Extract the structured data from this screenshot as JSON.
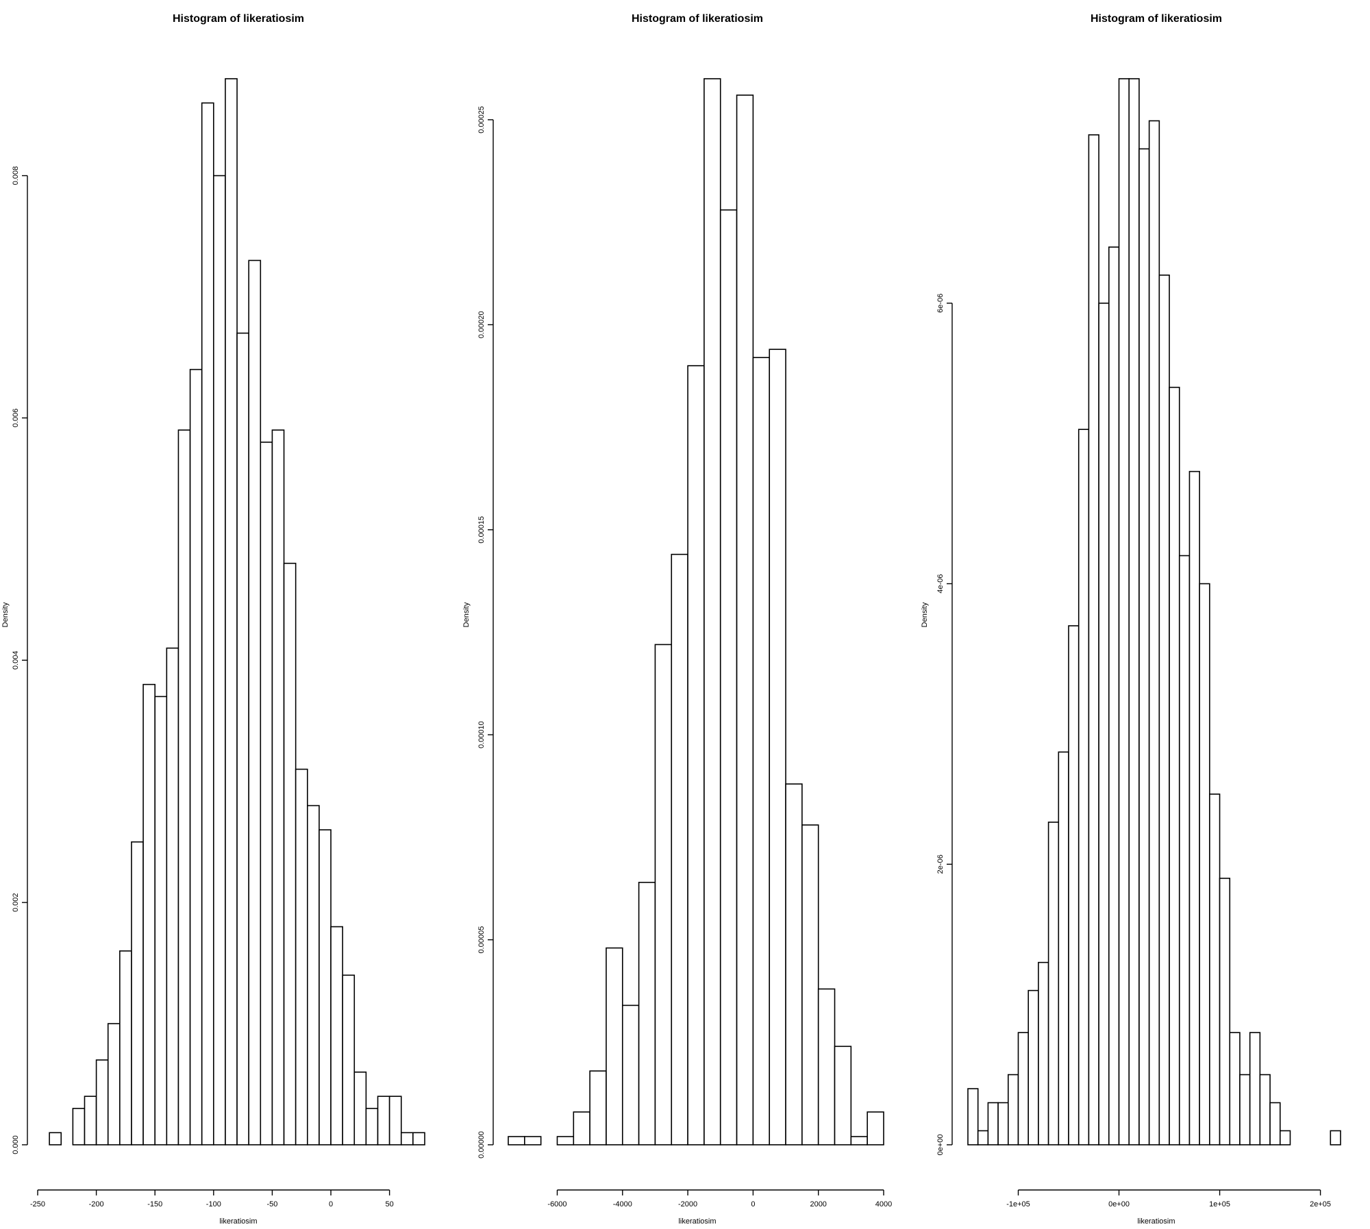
{
  "chart_data": [
    {
      "type": "histogram",
      "title": "Histogram of likeratiosim",
      "xlabel": "likeratiosim",
      "ylabel": "Density",
      "xticks": [
        -250,
        -200,
        -150,
        -100,
        -50,
        0,
        50
      ],
      "xtick_labels": [
        "-250",
        "-200",
        "-150",
        "-100",
        "-50",
        "0",
        "50"
      ],
      "yticks": [
        0,
        0.002,
        0.004,
        0.006,
        0.008
      ],
      "ytick_labels": [
        "0.000",
        "0.002",
        "0.004",
        "0.006",
        "0.008"
      ],
      "xlim": [
        -250,
        80
      ],
      "ylim": [
        0,
        0.0088
      ],
      "bin_start": -240,
      "bin_width": 10,
      "values": [
        0.0001,
        0,
        0.0003,
        0.0004,
        0.0007,
        0.001,
        0.0016,
        0.0025,
        0.0038,
        0.0037,
        0.0041,
        0.0059,
        0.0064,
        0.0086,
        0.008,
        0.0088,
        0.0067,
        0.0073,
        0.0058,
        0.0059,
        0.0048,
        0.0031,
        0.0028,
        0.0026,
        0.0018,
        0.0014,
        0.0006,
        0.0003,
        0.0004,
        0.0004,
        0.0001,
        0.0001
      ],
      "grid": false,
      "legend": "none"
    },
    {
      "type": "histogram",
      "title": "Histogram of likeratiosim",
      "xlabel": "likeratiosim",
      "ylabel": "Density",
      "xticks": [
        -6000,
        -4000,
        -2000,
        0,
        2000,
        4000
      ],
      "xtick_labels": [
        "-6000",
        "-4000",
        "-2000",
        "0",
        "2000",
        "4000"
      ],
      "yticks": [
        0,
        5e-05,
        0.0001,
        0.00015,
        0.0002,
        0.00025
      ],
      "ytick_labels": [
        "0.00000",
        "0.00005",
        "0.00010",
        "0.00015",
        "0.00020",
        "0.00025"
      ],
      "xlim": [
        -7500,
        4000
      ],
      "ylim": [
        0,
        0.00026
      ],
      "bin_start": -7500,
      "bin_width": 500,
      "values": [
        2e-06,
        2e-06,
        0,
        2e-06,
        8e-06,
        1.8e-05,
        4.8e-05,
        3.4e-05,
        6.4e-05,
        0.000122,
        0.000144,
        0.00019,
        0.00026,
        0.000228,
        0.000256,
        0.000192,
        0.000194,
        8.8e-05,
        7.8e-05,
        3.8e-05,
        2.4e-05,
        2e-06,
        8e-06
      ],
      "grid": false,
      "legend": "none"
    },
    {
      "type": "histogram",
      "title": "Histogram of likeratiosim",
      "xlabel": "likeratiosim",
      "ylabel": "Density",
      "xticks": [
        -100000,
        0,
        100000,
        200000
      ],
      "xtick_labels": [
        "-1e+05",
        "0e+00",
        "1e+05",
        "2e+05"
      ],
      "yticks": [
        0,
        2e-06,
        4e-06,
        6e-06
      ],
      "ytick_labels": [
        "0e+00",
        "2e-06",
        "4e-06",
        "6e-06"
      ],
      "xlim": [
        -150000,
        220000
      ],
      "ylim": [
        0,
        7.6e-06
      ],
      "bin_start": -150000,
      "bin_width": 10000,
      "values": [
        4e-07,
        1e-07,
        3e-07,
        3e-07,
        5e-07,
        8e-07,
        1.1e-06,
        1.3e-06,
        2.3e-06,
        2.8e-06,
        3.7e-06,
        5.1e-06,
        7.2e-06,
        6e-06,
        6.4e-06,
        7.6e-06,
        7.6e-06,
        7.1e-06,
        7.3e-06,
        6.2e-06,
        5.4e-06,
        4.2e-06,
        4.8e-06,
        4e-06,
        2.5e-06,
        1.9e-06,
        8e-07,
        5e-07,
        8e-07,
        5e-07,
        3e-07,
        1e-07,
        0,
        0,
        0,
        0,
        1e-07
      ],
      "grid": false,
      "legend": "none"
    }
  ]
}
